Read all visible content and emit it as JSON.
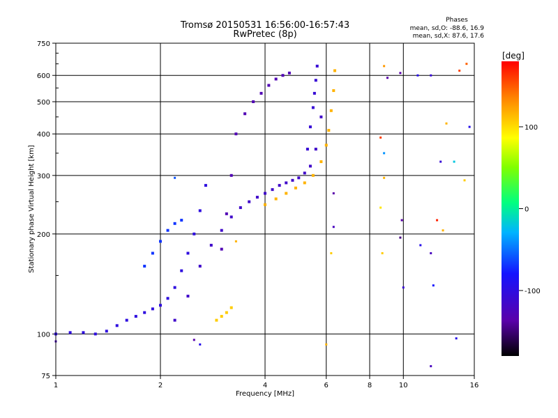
{
  "chart_data": {
    "type": "scatter",
    "title": "Tromsø 20150531 16:56:00-16:57:43",
    "subtitle": "RwPretec (8p)",
    "xlabel": "Frequency [MHz]",
    "ylabel": "Stationary phase Virtual Height [km]",
    "x_scale": "log",
    "y_scale": "log",
    "xlim": [
      1,
      16
    ],
    "ylim": [
      75,
      750
    ],
    "x_ticks": [
      1,
      2,
      4,
      6,
      8,
      10,
      16
    ],
    "y_ticks": [
      75,
      100,
      200,
      300,
      400,
      500,
      600,
      750
    ],
    "grid": true,
    "phases": {
      "heading": "Phases",
      "o_line": "mean, sd,O: -88.6, 16.9",
      "x_line": "mean, sd,X:  87.6, 17.6"
    },
    "colorbar": {
      "label": "[deg]",
      "range": [
        -180,
        180
      ],
      "ticks": [
        100,
        0,
        -100
      ]
    },
    "traces": [
      {
        "name": "",
        "phase_deg": -115,
        "x": [
          1.0,
          1.1,
          1.2,
          1.3,
          1.4,
          1.5,
          1.6,
          1.7,
          1.8,
          1.9,
          2.0,
          2.1,
          2.2,
          2.3,
          2.4,
          2.5,
          2.6,
          2.7
        ],
        "y": [
          100,
          101,
          101,
          100,
          102,
          106,
          110,
          113,
          116,
          119,
          122,
          128,
          138,
          155,
          175,
          200,
          235,
          280
        ]
      },
      {
        "name": "",
        "phase_deg": -125,
        "x": [
          2.2,
          2.4,
          2.6,
          2.8,
          3.0,
          3.2,
          3.4,
          3.6,
          3.8,
          4.0,
          4.2,
          4.4,
          4.6,
          4.8,
          5.0,
          5.2,
          5.4,
          5.6,
          5.8
        ],
        "y": [
          110,
          130,
          160,
          185,
          205,
          225,
          240,
          250,
          258,
          265,
          272,
          280,
          285,
          290,
          295,
          305,
          320,
          360,
          450
        ]
      },
      {
        "name": "",
        "phase_deg": -135,
        "x": [
          3.0,
          3.1,
          3.2,
          3.3,
          3.5,
          3.7,
          3.9,
          4.1,
          4.3,
          4.5,
          4.7
        ],
        "y": [
          180,
          230,
          300,
          400,
          460,
          500,
          530,
          560,
          585,
          600,
          610
        ]
      },
      {
        "name": "",
        "phase_deg": -120,
        "x": [
          5.3,
          5.4,
          5.5,
          5.55,
          5.6,
          5.65
        ],
        "y": [
          360,
          420,
          480,
          530,
          580,
          640
        ]
      },
      {
        "name": "",
        "phase_deg": 120,
        "x": [
          4.0,
          4.3,
          4.6,
          4.9,
          5.2,
          5.5,
          5.8,
          6.0,
          6.1,
          6.2,
          6.3,
          6.35
        ],
        "y": [
          245,
          255,
          265,
          275,
          285,
          300,
          330,
          370,
          410,
          470,
          540,
          620
        ]
      },
      {
        "name": "",
        "phase_deg": 110,
        "x": [
          2.9,
          3.0,
          3.1,
          3.2
        ],
        "y": [
          110,
          113,
          116,
          120
        ]
      },
      {
        "name": "",
        "phase_deg": -90,
        "x": [
          1.8,
          1.9,
          2.0,
          2.1,
          2.2,
          2.3
        ],
        "y": [
          160,
          175,
          190,
          205,
          215,
          220
        ]
      }
    ],
    "scattered_points": [
      {
        "x": 8.8,
        "y": 640,
        "phase_deg": 130
      },
      {
        "x": 9.8,
        "y": 610,
        "phase_deg": -140
      },
      {
        "x": 11.0,
        "y": 600,
        "phase_deg": -110
      },
      {
        "x": 12.0,
        "y": 600,
        "phase_deg": -120
      },
      {
        "x": 14.5,
        "y": 620,
        "phase_deg": 160
      },
      {
        "x": 15.2,
        "y": 650,
        "phase_deg": 150
      },
      {
        "x": 9.0,
        "y": 590,
        "phase_deg": -140
      },
      {
        "x": 8.6,
        "y": 390,
        "phase_deg": 160
      },
      {
        "x": 8.8,
        "y": 350,
        "phase_deg": -60
      },
      {
        "x": 8.8,
        "y": 295,
        "phase_deg": 120
      },
      {
        "x": 8.6,
        "y": 240,
        "phase_deg": 100
      },
      {
        "x": 8.7,
        "y": 175,
        "phase_deg": 110
      },
      {
        "x": 9.9,
        "y": 220,
        "phase_deg": -140
      },
      {
        "x": 9.8,
        "y": 195,
        "phase_deg": -150
      },
      {
        "x": 10.0,
        "y": 138,
        "phase_deg": -120
      },
      {
        "x": 11.2,
        "y": 185,
        "phase_deg": -110
      },
      {
        "x": 12.0,
        "y": 175,
        "phase_deg": -130
      },
      {
        "x": 12.2,
        "y": 140,
        "phase_deg": -100
      },
      {
        "x": 12.5,
        "y": 220,
        "phase_deg": 170
      },
      {
        "x": 13.0,
        "y": 205,
        "phase_deg": 120
      },
      {
        "x": 12.8,
        "y": 330,
        "phase_deg": -120
      },
      {
        "x": 13.3,
        "y": 430,
        "phase_deg": 120
      },
      {
        "x": 14.0,
        "y": 330,
        "phase_deg": -40
      },
      {
        "x": 15.0,
        "y": 290,
        "phase_deg": 110
      },
      {
        "x": 15.5,
        "y": 420,
        "phase_deg": -110
      },
      {
        "x": 12.0,
        "y": 80,
        "phase_deg": -130
      },
      {
        "x": 14.2,
        "y": 97,
        "phase_deg": -110
      },
      {
        "x": 6.0,
        "y": 93,
        "phase_deg": 120
      },
      {
        "x": 6.2,
        "y": 175,
        "phase_deg": 110
      },
      {
        "x": 6.3,
        "y": 210,
        "phase_deg": -130
      },
      {
        "x": 6.3,
        "y": 265,
        "phase_deg": -140
      },
      {
        "x": 2.5,
        "y": 96,
        "phase_deg": -140
      },
      {
        "x": 2.6,
        "y": 93,
        "phase_deg": -110
      },
      {
        "x": 1.0,
        "y": 95,
        "phase_deg": -130
      },
      {
        "x": 2.2,
        "y": 295,
        "phase_deg": -80
      },
      {
        "x": 3.3,
        "y": 190,
        "phase_deg": 120
      }
    ]
  }
}
